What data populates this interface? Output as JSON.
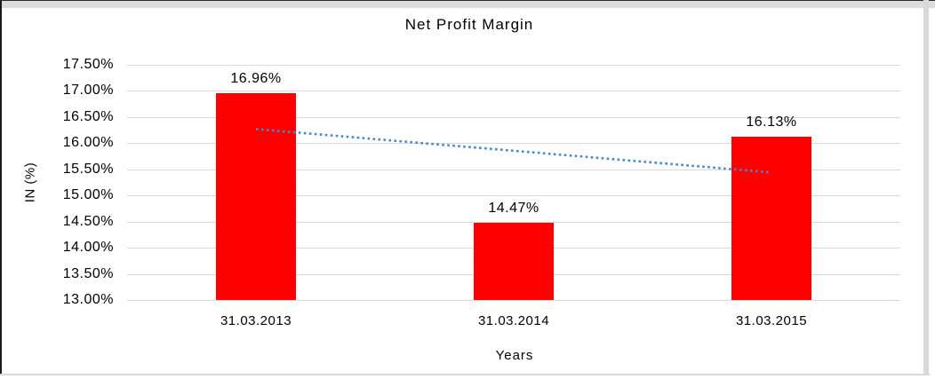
{
  "chart_data": {
    "type": "bar",
    "title": "Net Profit Margin",
    "categories": [
      "31.03.2013",
      "31.03.2014",
      "31.03.2015"
    ],
    "values": [
      16.96,
      14.47,
      16.13
    ],
    "data_labels": [
      "16.96%",
      "14.47%",
      "16.13%"
    ],
    "xlabel": "Years",
    "ylabel": "IN (%)",
    "ylim": [
      13.0,
      17.5
    ],
    "ytick_step": 0.5,
    "yticks": [
      "17.50%",
      "17.00%",
      "16.50%",
      "16.00%",
      "15.50%",
      "15.00%",
      "14.50%",
      "14.00%",
      "13.50%",
      "13.00%"
    ],
    "grid": true,
    "legend": "none",
    "bar_color": "#ff0000",
    "gridline_color": "#d9d9d9",
    "trendline": {
      "style": "dotted",
      "color": "#4a87c7",
      "endpoint_values": [
        16.27,
        15.44
      ]
    }
  },
  "frame": {
    "outer_border_color": "#1a1a1a",
    "band_color": "#d9d9d9"
  }
}
